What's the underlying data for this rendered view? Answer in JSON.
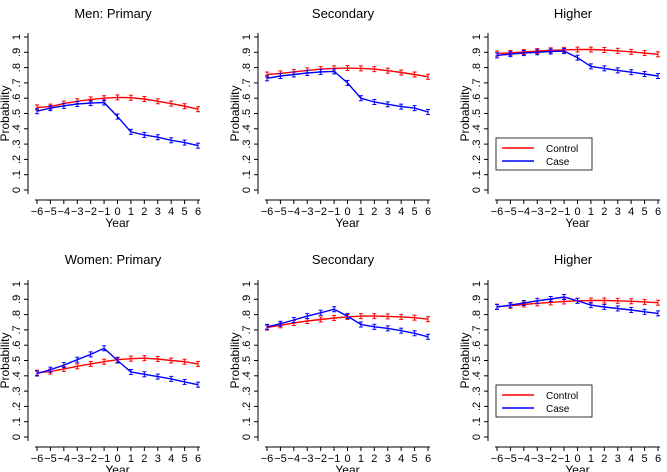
{
  "figure": {
    "x": [
      -6,
      -5,
      -4,
      -3,
      -2,
      -1,
      0,
      1,
      2,
      3,
      4,
      5,
      6
    ],
    "xticklabels": [
      "−6",
      "−5",
      "−4",
      "−3",
      "−2",
      "−1",
      "0",
      "1",
      "2",
      "3",
      "4",
      "5",
      "6"
    ],
    "yticks": [
      0,
      0.1,
      0.2,
      0.3,
      0.4,
      0.5,
      0.6,
      0.7,
      0.8,
      0.9,
      1
    ],
    "yticklabels": [
      "0",
      ".1",
      ".2",
      ".3",
      ".4",
      ".5",
      ".6",
      ".7",
      ".8",
      ".9",
      "1"
    ],
    "colors": {
      "control": "#ff0000",
      "case": "#0000ff"
    }
  },
  "chart_data": [
    {
      "type": "line",
      "title": "Men: Primary",
      "xlabel": "Year",
      "ylabel": "Probability",
      "ylim": [
        0,
        1
      ],
      "grid": false,
      "legend": null,
      "series": [
        {
          "name": "Control",
          "values": [
            0.54,
            0.545,
            0.565,
            0.58,
            0.592,
            0.6,
            0.605,
            0.603,
            0.595,
            0.58,
            0.565,
            0.548,
            0.528
          ]
        },
        {
          "name": "Case",
          "values": [
            0.515,
            0.535,
            0.55,
            0.562,
            0.568,
            0.572,
            0.48,
            0.38,
            0.36,
            0.345,
            0.325,
            0.31,
            0.29
          ]
        }
      ]
    },
    {
      "type": "line",
      "title": "Secondary",
      "xlabel": "Year",
      "ylabel": "Probability",
      "ylim": [
        0,
        1
      ],
      "grid": false,
      "legend": null,
      "series": [
        {
          "name": "Control",
          "values": [
            0.755,
            0.762,
            0.772,
            0.782,
            0.79,
            0.795,
            0.797,
            0.795,
            0.79,
            0.78,
            0.768,
            0.755,
            0.74
          ]
        },
        {
          "name": "Case",
          "values": [
            0.73,
            0.745,
            0.755,
            0.765,
            0.772,
            0.775,
            0.7,
            0.6,
            0.575,
            0.56,
            0.545,
            0.535,
            0.51
          ]
        }
      ]
    },
    {
      "type": "line",
      "title": "Higher",
      "xlabel": "Year",
      "ylabel": "Probability",
      "ylim": [
        0,
        1
      ],
      "grid": false,
      "legend": "bottom-left",
      "series": [
        {
          "name": "Control",
          "values": [
            0.892,
            0.896,
            0.902,
            0.908,
            0.913,
            0.916,
            0.918,
            0.918,
            0.915,
            0.91,
            0.903,
            0.895,
            0.887
          ]
        },
        {
          "name": "Case",
          "values": [
            0.88,
            0.888,
            0.895,
            0.9,
            0.905,
            0.908,
            0.865,
            0.808,
            0.795,
            0.782,
            0.77,
            0.758,
            0.745
          ]
        }
      ]
    },
    {
      "type": "line",
      "title": "Women: Primary",
      "xlabel": "Year",
      "ylabel": "Probability",
      "ylim": [
        0,
        1
      ],
      "grid": false,
      "legend": null,
      "series": [
        {
          "name": "Control",
          "values": [
            0.42,
            0.428,
            0.445,
            0.462,
            0.478,
            0.492,
            0.505,
            0.512,
            0.515,
            0.51,
            0.5,
            0.492,
            0.478
          ]
        },
        {
          "name": "Case",
          "values": [
            0.415,
            0.44,
            0.47,
            0.505,
            0.54,
            0.58,
            0.5,
            0.425,
            0.41,
            0.395,
            0.38,
            0.36,
            0.342
          ]
        }
      ]
    },
    {
      "type": "line",
      "title": "Secondary",
      "xlabel": "Year",
      "ylabel": "Probability",
      "ylim": [
        0,
        1
      ],
      "grid": false,
      "legend": null,
      "series": [
        {
          "name": "Control",
          "values": [
            0.715,
            0.73,
            0.745,
            0.758,
            0.768,
            0.778,
            0.785,
            0.79,
            0.79,
            0.788,
            0.785,
            0.78,
            0.77
          ]
        },
        {
          "name": "Case",
          "values": [
            0.72,
            0.74,
            0.765,
            0.79,
            0.812,
            0.835,
            0.79,
            0.735,
            0.72,
            0.71,
            0.695,
            0.678,
            0.655
          ]
        }
      ]
    },
    {
      "type": "line",
      "title": "Higher",
      "xlabel": "Year",
      "ylabel": "Probability",
      "ylim": [
        0,
        1
      ],
      "grid": false,
      "legend": "bottom-left",
      "series": [
        {
          "name": "Control",
          "values": [
            0.852,
            0.858,
            0.866,
            0.874,
            0.88,
            0.886,
            0.89,
            0.892,
            0.892,
            0.89,
            0.887,
            0.883,
            0.878
          ]
        },
        {
          "name": "Case",
          "values": [
            0.85,
            0.862,
            0.876,
            0.89,
            0.902,
            0.915,
            0.89,
            0.862,
            0.85,
            0.84,
            0.83,
            0.818,
            0.808
          ]
        }
      ]
    }
  ]
}
